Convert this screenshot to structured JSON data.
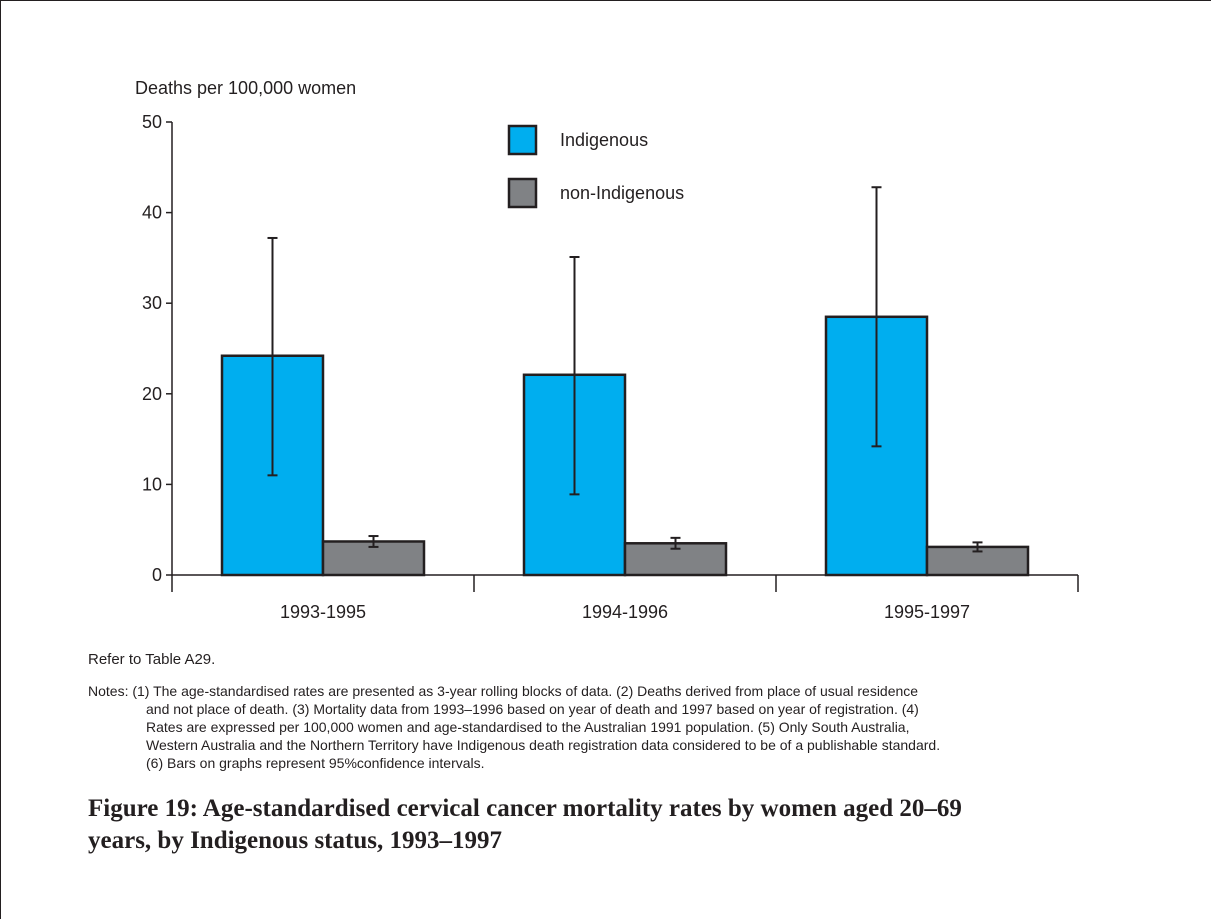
{
  "chart_data": {
    "type": "bar",
    "y_label": "Deaths per 100,000 women",
    "categories": [
      "1993-1995",
      "1994-1996",
      "1995-1997"
    ],
    "series": [
      {
        "name": "Indigenous",
        "color": "#00aeef",
        "values": [
          24.2,
          22.1,
          28.5
        ],
        "ci_low": [
          11,
          8.9,
          14.2
        ],
        "ci_high": [
          37.2,
          35.1,
          42.8
        ]
      },
      {
        "name": "non-Indigenous",
        "color": "#808285",
        "values": [
          3.7,
          3.5,
          3.1
        ],
        "ci_low": [
          3.1,
          2.9,
          2.6
        ],
        "ci_high": [
          4.3,
          4.1,
          3.6
        ]
      }
    ],
    "ylim": [
      0,
      50
    ],
    "yticks": [
      0,
      10,
      20,
      30,
      40,
      50
    ],
    "source": "Refer to Table A29.",
    "notes": [
      "Notes: (1) The age-standardised rates are presented as 3-year rolling blocks of data. (2) Deaths derived from place of usual residence",
      "and not place of death. (3) Mortality data from 1993–1996 based on year of death and 1997 based on year of registration. (4)",
      "Rates are expressed per 100,000 women and age-standardised to the Australian 1991 population. (5) Only South Australia,",
      "Western Australia and the Northern Territory have Indigenous death registration data considered to be of a publishable standard.",
      "(6) Bars on graphs represent 95%confidence intervals."
    ],
    "caption": [
      "Figure 19: Age-standardised cervical cancer mortality rates by women aged 20–69",
      "years, by Indigenous status, 1993–1997"
    ]
  }
}
